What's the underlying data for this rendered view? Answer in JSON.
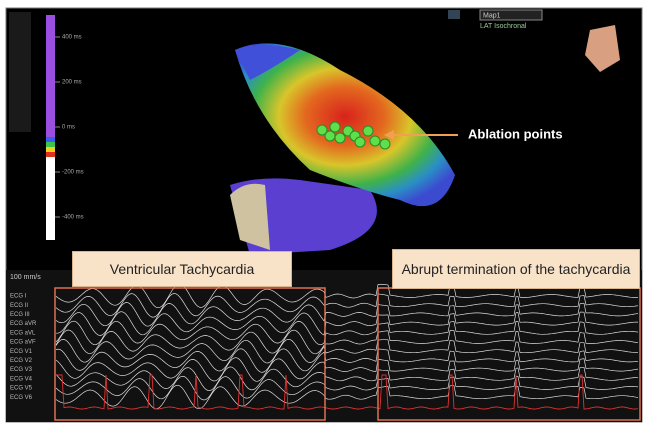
{
  "map": {
    "name": "Map1",
    "mode": "LAT Isochronal"
  },
  "color_scale": {
    "labels": [
      "400 ms",
      "200 ms",
      "0 ms",
      "-200 ms",
      "-400 ms"
    ]
  },
  "annotations": {
    "ablation": "Ablation points",
    "left_panel": "Ventricular Tachycardia",
    "right_panel": "Abrupt termination of the tachycardia"
  },
  "ecg": {
    "speed": "100 mm/s",
    "leads": [
      "ECG I",
      "ECG II",
      "ECG III",
      "ECG aVR",
      "ECG aVL",
      "ECG aVF",
      "ECG V1",
      "ECG V2",
      "ECG V3",
      "ECG V4",
      "ECG V5",
      "ECG V6"
    ]
  }
}
